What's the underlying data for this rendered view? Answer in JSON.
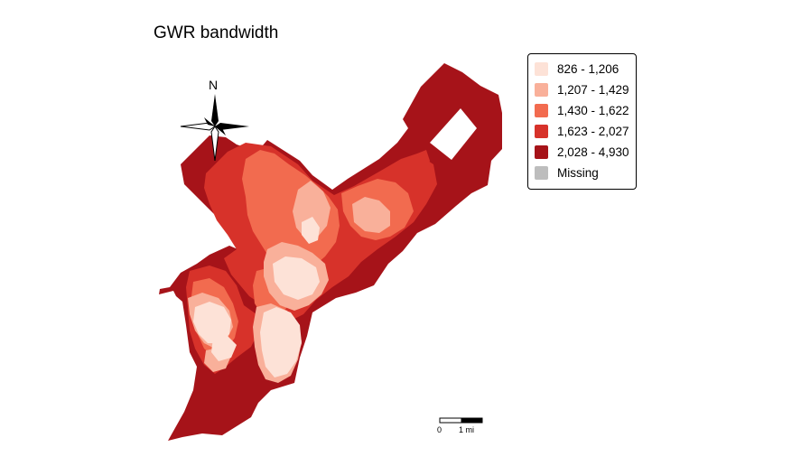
{
  "title": "GWR bandwidth",
  "north_label": "N",
  "scale_bar": {
    "label_start": "0",
    "label_end": "1 mi"
  },
  "colors": {
    "class1": "#fde2d7",
    "class2": "#f9b09a",
    "class3": "#f26b4f",
    "class4": "#d7322a",
    "class5": "#a61319",
    "missing": "#bdbdbd"
  },
  "legend": {
    "items": [
      {
        "label": "826 - 1,206",
        "color": "#fde2d7"
      },
      {
        "label": "1,207 - 1,429",
        "color": "#f9b09a"
      },
      {
        "label": "1,430 - 1,622",
        "color": "#f26b4f"
      },
      {
        "label": "1,623 - 2,027",
        "color": "#d7322a"
      },
      {
        "label": "2,028 - 4,930",
        "color": "#a61319"
      },
      {
        "label": "Missing",
        "color": "#bdbdbd"
      }
    ]
  }
}
